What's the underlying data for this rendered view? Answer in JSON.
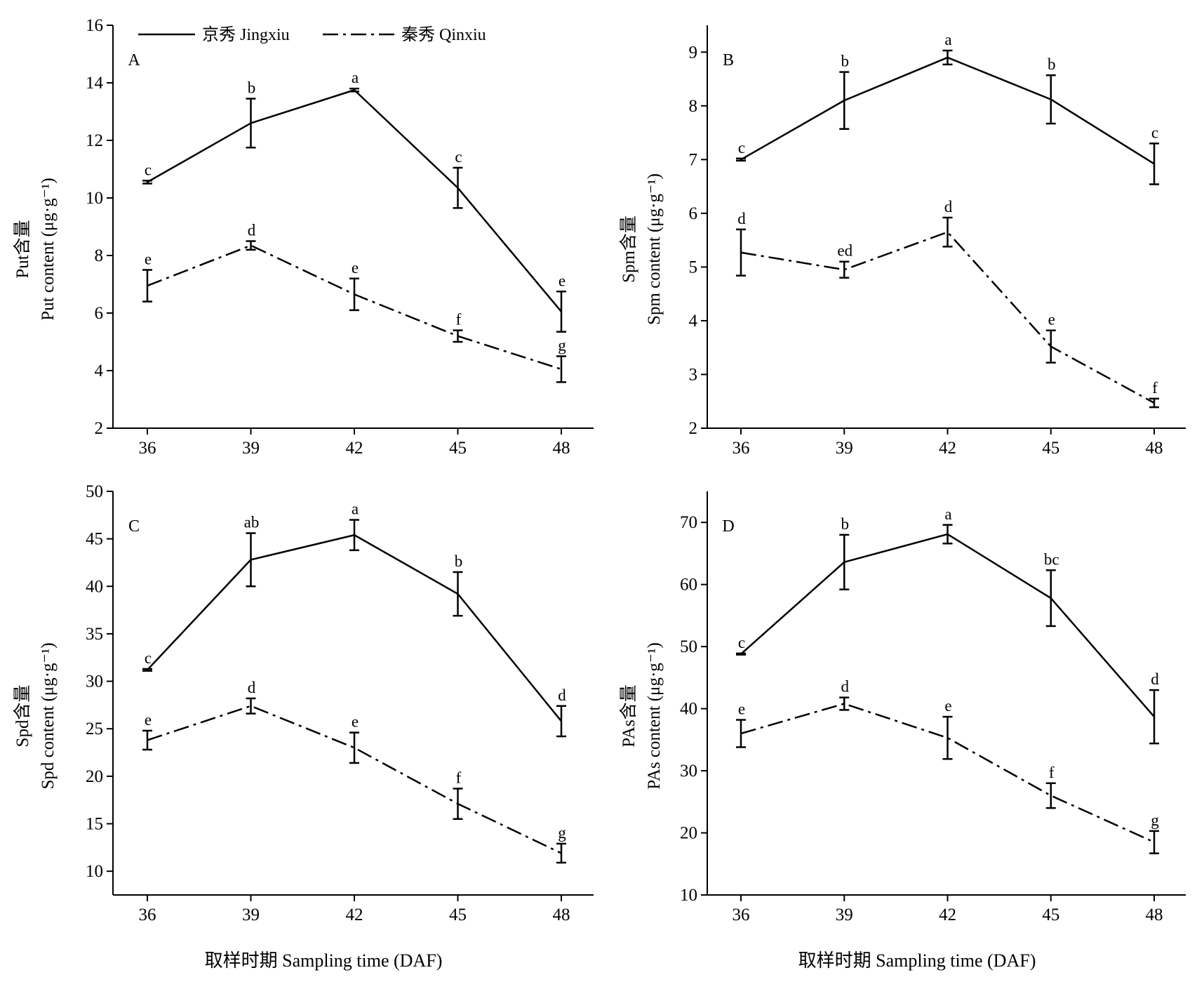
{
  "legend": {
    "series": [
      {
        "name": "京秀 Jingxiu",
        "style": "solid"
      },
      {
        "name": "秦秀 Qinxiu",
        "style": "dashdot"
      }
    ]
  },
  "x_axis_title": "取样时期 Sampling time (DAF)",
  "chart_data": [
    {
      "panel": "A",
      "type": "line",
      "x": [
        36,
        39,
        42,
        45,
        48
      ],
      "ylabel_line1": "Put含量",
      "ylabel_line2": "Put content (μg·g⁻¹)",
      "ylim": [
        2,
        16
      ],
      "yticks": [
        2,
        4,
        6,
        8,
        10,
        12,
        14,
        16
      ],
      "series": [
        {
          "name": "京秀 Jingxiu",
          "values": [
            10.55,
            12.6,
            13.75,
            10.35,
            6.05
          ],
          "errors": [
            0.05,
            0.85,
            0.05,
            0.7,
            0.7
          ],
          "labels": [
            "c",
            "b",
            "a",
            "c",
            "e"
          ]
        },
        {
          "name": "秦秀 Qinxiu",
          "values": [
            6.95,
            8.35,
            6.65,
            5.2,
            4.05
          ],
          "errors": [
            0.55,
            0.15,
            0.55,
            0.2,
            0.45
          ],
          "labels": [
            "e",
            "d",
            "e",
            "f",
            "g"
          ]
        }
      ]
    },
    {
      "panel": "B",
      "type": "line",
      "x": [
        36,
        39,
        42,
        45,
        48
      ],
      "ylabel_line1": "Spm含量",
      "ylabel_line2": "Spm content (μg·g⁻¹)",
      "ylim": [
        2,
        9.5
      ],
      "yticks": [
        2,
        3,
        4,
        5,
        6,
        7,
        8,
        9
      ],
      "series": [
        {
          "name": "京秀 Jingxiu",
          "values": [
            7.0,
            8.1,
            8.9,
            8.12,
            6.92
          ],
          "errors": [
            0.02,
            0.53,
            0.13,
            0.45,
            0.38
          ],
          "labels": [
            "c",
            "b",
            "a",
            "b",
            "c"
          ]
        },
        {
          "name": "秦秀 Qinxiu",
          "values": [
            5.27,
            4.95,
            5.65,
            3.52,
            2.47
          ],
          "errors": [
            0.43,
            0.15,
            0.27,
            0.3,
            0.08
          ],
          "labels": [
            "d",
            "ed",
            "d",
            "e",
            "f"
          ]
        }
      ]
    },
    {
      "panel": "C",
      "type": "line",
      "x": [
        36,
        39,
        42,
        45,
        48
      ],
      "ylabel_line1": "Spd含量",
      "ylabel_line2": "Spd content (μg·g⁻¹)",
      "ylim": [
        7.5,
        50
      ],
      "yticks": [
        10,
        15,
        20,
        25,
        30,
        35,
        40,
        45,
        50
      ],
      "series": [
        {
          "name": "京秀 Jingxiu",
          "values": [
            31.2,
            42.8,
            45.4,
            39.2,
            25.8
          ],
          "errors": [
            0.1,
            2.8,
            1.6,
            2.3,
            1.6
          ],
          "labels": [
            "c",
            "ab",
            "a",
            "b",
            "d"
          ]
        },
        {
          "name": "秦秀 Qinxiu",
          "values": [
            23.8,
            27.4,
            23.0,
            17.1,
            11.9
          ],
          "errors": [
            1.0,
            0.8,
            1.6,
            1.6,
            1.0
          ],
          "labels": [
            "e",
            "d",
            "e",
            "f",
            "g"
          ]
        }
      ]
    },
    {
      "panel": "D",
      "type": "line",
      "x": [
        36,
        39,
        42,
        45,
        48
      ],
      "ylabel_line1": "PAs含量",
      "ylabel_line2": "PAs content (μg·g⁻¹)",
      "ylim": [
        10,
        75
      ],
      "yticks": [
        10,
        20,
        30,
        40,
        50,
        60,
        70
      ],
      "series": [
        {
          "name": "京秀 Jingxiu",
          "values": [
            48.8,
            63.6,
            68.1,
            57.8,
            38.7
          ],
          "errors": [
            0.1,
            4.4,
            1.5,
            4.5,
            4.3
          ],
          "labels": [
            "c",
            "b",
            "a",
            "bc",
            "d"
          ]
        },
        {
          "name": "秦秀 Qinxiu",
          "values": [
            36.0,
            40.8,
            35.3,
            26.0,
            18.5
          ],
          "errors": [
            2.2,
            1.0,
            3.4,
            2.0,
            1.8
          ],
          "labels": [
            "e",
            "d",
            "e",
            "f",
            "g"
          ]
        }
      ]
    }
  ]
}
